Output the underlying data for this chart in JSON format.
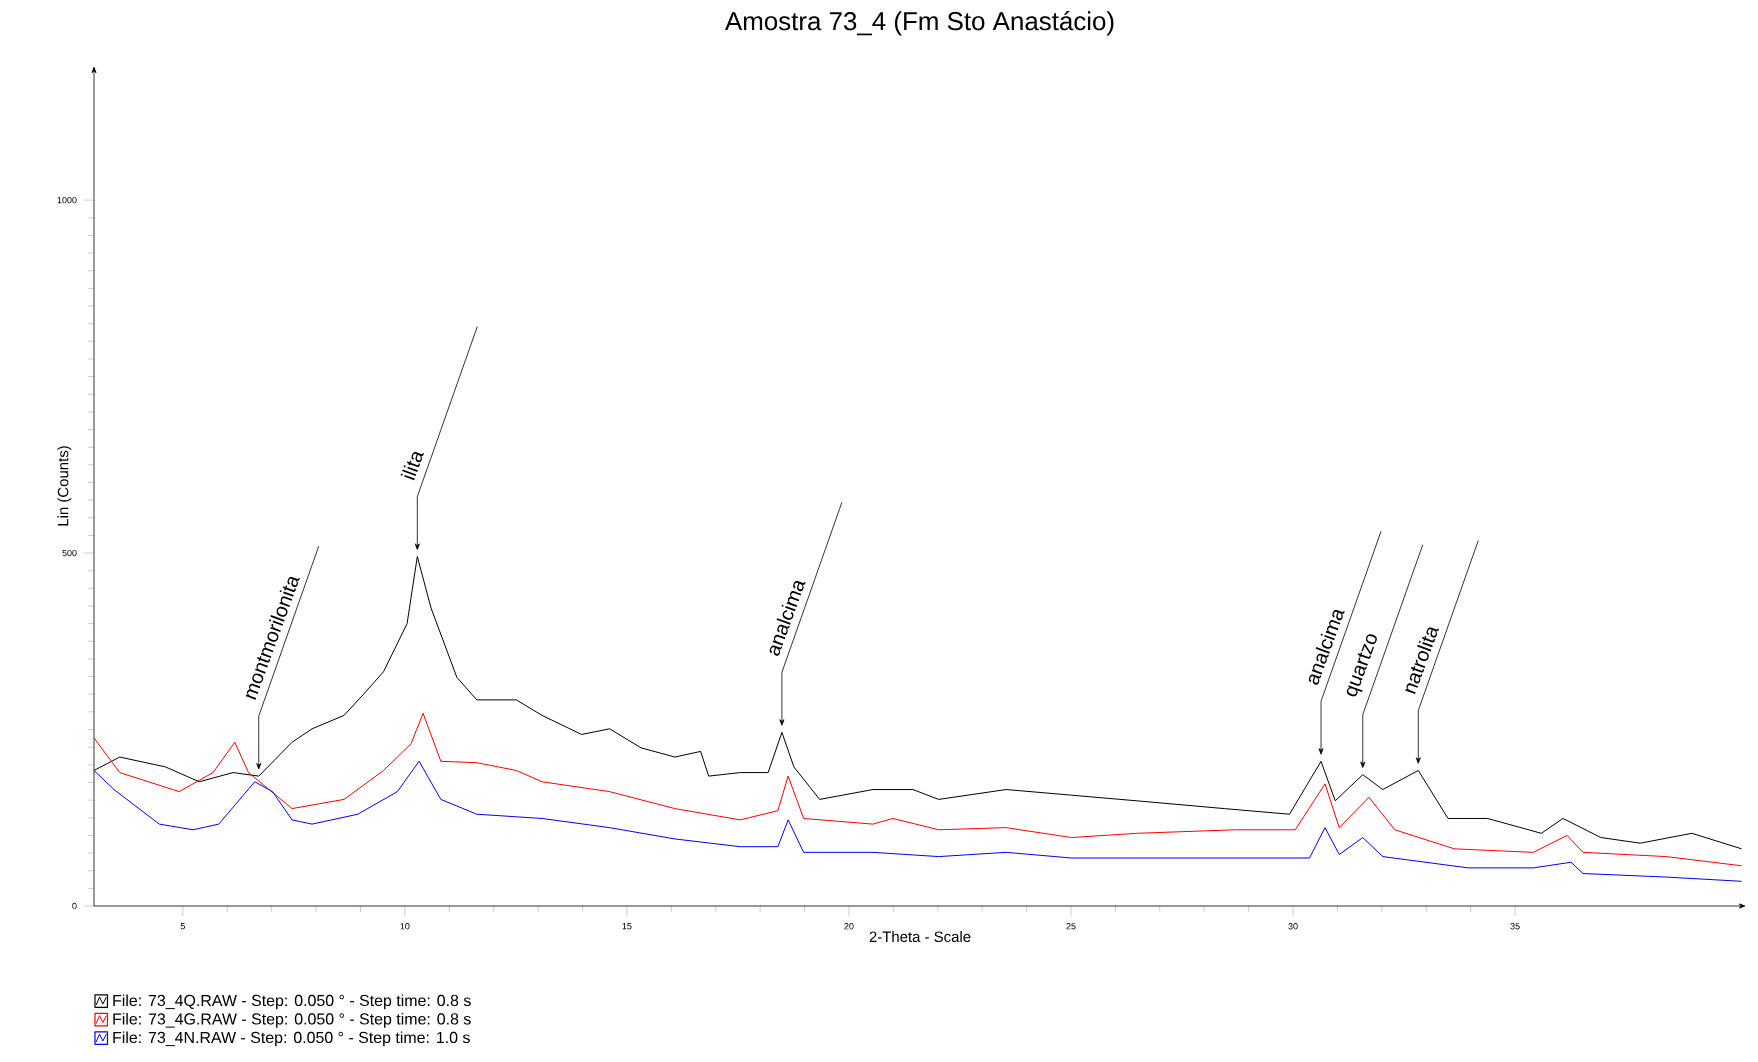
{
  "chart_data": {
    "type": "line",
    "title": "Amostra 73_4 (Fm Sto Anastácio)",
    "xlabel": "2-Theta - Scale",
    "ylabel": "Lin (Counts)",
    "xlim": [
      3,
      40.2
    ],
    "ylim": [
      0,
      1190
    ],
    "xticks": [
      5,
      10,
      15,
      20,
      25,
      30,
      35
    ],
    "yticks": [
      0,
      500,
      1000
    ],
    "legend": "bottom left",
    "line_style": "solid",
    "series": [
      {
        "name": "File: 73_4Q.RAW - Step: 0.050 ° - Step time: 0.8 s",
        "color": "#000000",
        "x": [
          3.0,
          3.58,
          4.61,
          5.37,
          6.13,
          6.71,
          7.46,
          7.91,
          8.63,
          9.07,
          9.52,
          10.05,
          10.28,
          10.59,
          11.17,
          11.62,
          12.51,
          13.09,
          13.98,
          14.61,
          15.32,
          16.08,
          16.66,
          16.84,
          17.55,
          18.18,
          18.49,
          18.76,
          19.34,
          20.54,
          21.44,
          22.02,
          23.54,
          25.01,
          26.48,
          28.45,
          29.92,
          30.63,
          30.95,
          31.57,
          32.02,
          32.82,
          33.49,
          34.38,
          35.59,
          36.08,
          36.93,
          37.82,
          38.98,
          40.1
        ],
        "values": [
          192,
          211,
          197,
          176,
          189,
          184,
          232,
          251,
          270,
          300,
          332,
          400,
          495,
          422,
          324,
          292,
          292,
          270,
          243,
          251,
          224,
          211,
          219,
          184,
          189,
          189,
          246,
          197,
          151,
          165,
          165,
          151,
          165,
          157,
          149,
          138,
          130,
          205,
          149,
          186,
          165,
          192,
          124,
          124,
          103,
          124,
          97,
          89,
          103,
          81
        ]
      },
      {
        "name": "File: 73_4G.RAW - Step: 0.050 ° - Step time: 0.8 s",
        "color": "#ff0000",
        "x": [
          3.0,
          3.58,
          4.92,
          5.68,
          6.17,
          6.48,
          7.46,
          8.63,
          9.52,
          10.14,
          10.41,
          10.81,
          11.62,
          12.51,
          13.09,
          14.61,
          16.08,
          17.55,
          18.4,
          18.63,
          18.98,
          20.54,
          20.99,
          22.02,
          23.54,
          25.01,
          26.48,
          28.71,
          30.05,
          30.72,
          31.04,
          31.71,
          32.29,
          33.63,
          35.41,
          36.17,
          36.53,
          38.4,
          40.1
        ],
        "values": [
          238,
          189,
          162,
          189,
          232,
          189,
          138,
          151,
          192,
          230,
          273,
          205,
          203,
          192,
          176,
          162,
          138,
          122,
          135,
          184,
          124,
          116,
          124,
          108,
          111,
          97,
          103,
          108,
          108,
          173,
          111,
          154,
          108,
          81,
          76,
          100,
          76,
          70,
          57
        ]
      },
      {
        "name": "File: 73_4N.RAW - Step: 0.050 ° - Step time: 1.0 s",
        "color": "#0000ff",
        "x": [
          3.0,
          3.45,
          4.47,
          5.23,
          5.81,
          6.62,
          7.02,
          7.46,
          7.91,
          8.94,
          9.83,
          10.32,
          10.81,
          11.62,
          13.09,
          14.61,
          16.08,
          17.55,
          18.4,
          18.63,
          18.98,
          20.54,
          22.02,
          23.54,
          25.01,
          30.37,
          30.72,
          31.04,
          31.57,
          32.02,
          33.94,
          35.41,
          36.26,
          36.53,
          38.4,
          40.1
        ],
        "values": [
          192,
          165,
          116,
          108,
          116,
          176,
          162,
          122,
          116,
          130,
          162,
          205,
          151,
          130,
          124,
          111,
          95,
          84,
          84,
          122,
          76,
          76,
          70,
          76,
          68,
          68,
          111,
          73,
          97,
          70,
          54,
          54,
          62,
          46,
          41,
          35
        ]
      }
    ],
    "annotations": [
      {
        "text": "montmorilonita",
        "x": 6.71,
        "y": 184
      },
      {
        "text": "ilita",
        "x": 10.28,
        "y": 495
      },
      {
        "text": "analcima",
        "x": 18.49,
        "y": 246
      },
      {
        "text": "analcima",
        "x": 30.63,
        "y": 205
      },
      {
        "text": "quartzo",
        "x": 31.57,
        "y": 186
      },
      {
        "text": "natrolita",
        "x": 32.82,
        "y": 192
      }
    ]
  }
}
